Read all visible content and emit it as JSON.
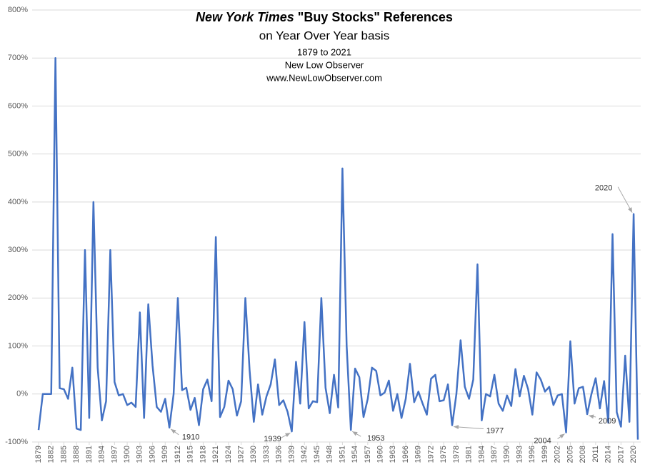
{
  "chart_data": {
    "type": "line",
    "title": {
      "italic": "New York Times",
      "rest": " \"Buy Stocks\" References"
    },
    "subtitle": [
      "on Year Over Year basis",
      "1879  to 2021",
      "New Low Observer",
      "www.NewLowObserver.com"
    ],
    "x": [
      1879,
      1880,
      1881,
      1882,
      1883,
      1884,
      1885,
      1886,
      1887,
      1888,
      1889,
      1890,
      1891,
      1892,
      1893,
      1894,
      1895,
      1896,
      1897,
      1898,
      1899,
      1900,
      1901,
      1902,
      1903,
      1904,
      1905,
      1906,
      1907,
      1908,
      1909,
      1910,
      1911,
      1912,
      1913,
      1914,
      1915,
      1916,
      1917,
      1918,
      1919,
      1920,
      1921,
      1922,
      1923,
      1924,
      1925,
      1926,
      1927,
      1928,
      1929,
      1930,
      1931,
      1932,
      1933,
      1934,
      1935,
      1936,
      1937,
      1938,
      1939,
      1940,
      1941,
      1942,
      1943,
      1944,
      1945,
      1946,
      1947,
      1948,
      1949,
      1950,
      1951,
      1952,
      1953,
      1954,
      1955,
      1956,
      1957,
      1958,
      1959,
      1960,
      1961,
      1962,
      1963,
      1964,
      1965,
      1966,
      1967,
      1968,
      1969,
      1970,
      1971,
      1972,
      1973,
      1974,
      1975,
      1976,
      1977,
      1978,
      1979,
      1980,
      1981,
      1982,
      1983,
      1984,
      1985,
      1986,
      1987,
      1988,
      1989,
      1990,
      1991,
      1992,
      1993,
      1994,
      1995,
      1996,
      1997,
      1998,
      1999,
      2000,
      2001,
      2002,
      2003,
      2004,
      2005,
      2006,
      2007,
      2008,
      2009,
      2010,
      2011,
      2012,
      2013,
      2014,
      2015,
      2016,
      2017,
      2018,
      2019,
      2020,
      2021
    ],
    "series": [
      {
        "color": "#4472c4",
        "values": [
          -75,
          0,
          0,
          0,
          700,
          12,
          10,
          -10,
          55,
          -72,
          -75,
          300,
          -50,
          400,
          55,
          -55,
          -15,
          300,
          25,
          -3,
          0,
          -23,
          -18,
          -27,
          170,
          -50,
          187,
          60,
          -27,
          -37,
          -10,
          -70,
          0,
          200,
          8,
          13,
          -33,
          -8,
          -65,
          10,
          30,
          -15,
          327,
          -48,
          -27,
          28,
          10,
          -45,
          -15,
          200,
          50,
          -58,
          20,
          -43,
          -5,
          20,
          72,
          -23,
          -13,
          -37,
          -78,
          67,
          -20,
          150,
          -30,
          -15,
          -17,
          200,
          13,
          -40,
          40,
          -28,
          470,
          100,
          -75,
          53,
          35,
          -48,
          -10,
          55,
          48,
          -3,
          3,
          28,
          -35,
          0,
          -50,
          -10,
          63,
          -17,
          5,
          -20,
          -43,
          32,
          40,
          -15,
          -13,
          20,
          -65,
          0,
          112,
          15,
          -10,
          30,
          270,
          -55,
          0,
          -5,
          40,
          -20,
          -35,
          -3,
          -25,
          52,
          -5,
          38,
          10,
          -43,
          45,
          30,
          5,
          15,
          -23,
          -3,
          0,
          -80,
          110,
          -20,
          12,
          15,
          -42,
          0,
          33,
          -30,
          27,
          -60,
          333,
          -38,
          -68,
          80,
          -58,
          375,
          -95
        ]
      }
    ],
    "xlim": [
      1879,
      2021
    ],
    "xticks": [
      1879,
      1882,
      1885,
      1888,
      1891,
      1894,
      1897,
      1900,
      1903,
      1906,
      1909,
      1912,
      1915,
      1918,
      1921,
      1924,
      1927,
      1930,
      1933,
      1936,
      1939,
      1942,
      1945,
      1948,
      1951,
      1954,
      1957,
      1960,
      1963,
      1966,
      1969,
      1972,
      1975,
      1978,
      1981,
      1984,
      1987,
      1990,
      1993,
      1996,
      1999,
      2002,
      2005,
      2008,
      2011,
      2014,
      2017,
      2020
    ],
    "ylim": [
      -100,
      800
    ],
    "yticks": [
      {
        "value": -100,
        "label": "-100%"
      },
      {
        "value": 0,
        "label": "0%"
      },
      {
        "value": 100,
        "label": "100%"
      },
      {
        "value": 200,
        "label": "200%"
      },
      {
        "value": 300,
        "label": "300%"
      },
      {
        "value": 400,
        "label": "400%"
      },
      {
        "value": 500,
        "label": "500%"
      },
      {
        "value": 600,
        "label": "600%"
      },
      {
        "value": 700,
        "label": "700%"
      },
      {
        "value": 800,
        "label": "800%"
      }
    ],
    "grid": true,
    "annotations": [
      {
        "text": "1910",
        "x": 1910
      },
      {
        "text": "1939",
        "x": 1939
      },
      {
        "text": "1953",
        "x": 1953
      },
      {
        "text": "1977",
        "x": 1977
      },
      {
        "text": "2004",
        "x": 2004
      },
      {
        "text": "2009",
        "x": 2009
      },
      {
        "text": "2020",
        "x": 2020
      }
    ]
  }
}
